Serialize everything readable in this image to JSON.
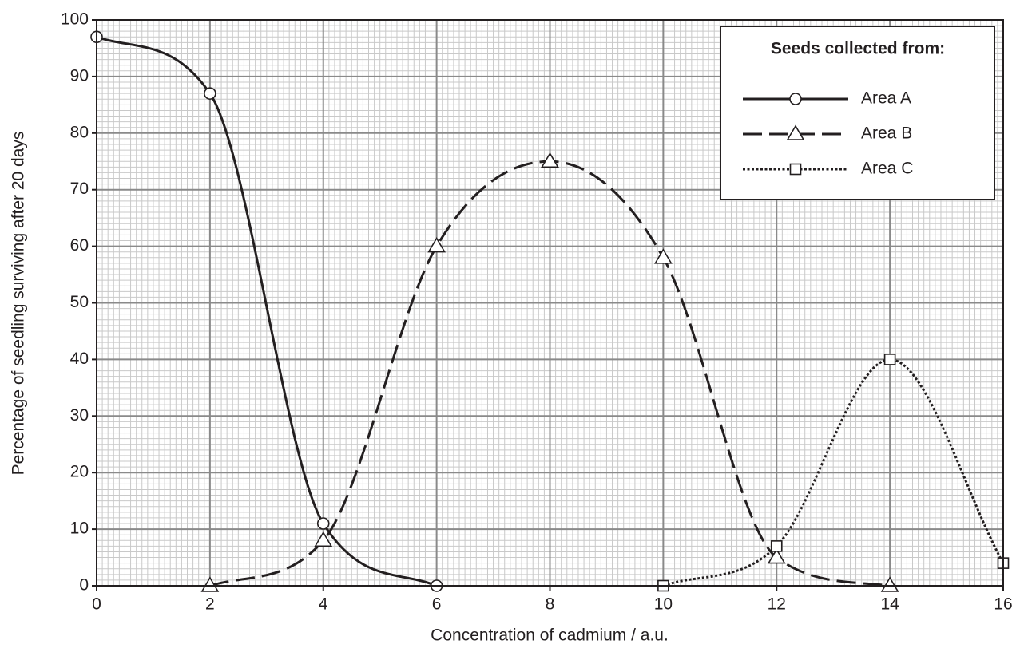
{
  "chart_data": {
    "type": "line",
    "xlabel": "Concentration of cadmium / a.u.",
    "ylabel": "Percentage of seedling surviving after 20 days",
    "xlim": [
      0,
      16
    ],
    "ylim": [
      0,
      100
    ],
    "xticks": [
      0,
      2,
      4,
      6,
      8,
      10,
      12,
      14,
      16
    ],
    "yticks": [
      0,
      10,
      20,
      30,
      40,
      50,
      60,
      70,
      80,
      90,
      100
    ],
    "grid": true,
    "smooth": true,
    "legend": {
      "title": "Seeds collected from:",
      "position": "upper right"
    },
    "series": [
      {
        "name": "Area A",
        "color": "#231f20",
        "dash": "solid",
        "marker": "circle",
        "x": [
          0,
          2,
          4,
          6
        ],
        "values": [
          97,
          87,
          11,
          0
        ]
      },
      {
        "name": "Area B",
        "color": "#231f20",
        "dash": "dashed",
        "marker": "triangle",
        "x": [
          2,
          4,
          6,
          8,
          10,
          12,
          14
        ],
        "values": [
          0,
          8,
          60,
          75,
          58,
          5,
          0
        ]
      },
      {
        "name": "Area C",
        "color": "#231f20",
        "dash": "dotted",
        "marker": "square",
        "x": [
          10,
          12,
          14,
          16
        ],
        "values": [
          0,
          7,
          40,
          4
        ]
      }
    ]
  }
}
